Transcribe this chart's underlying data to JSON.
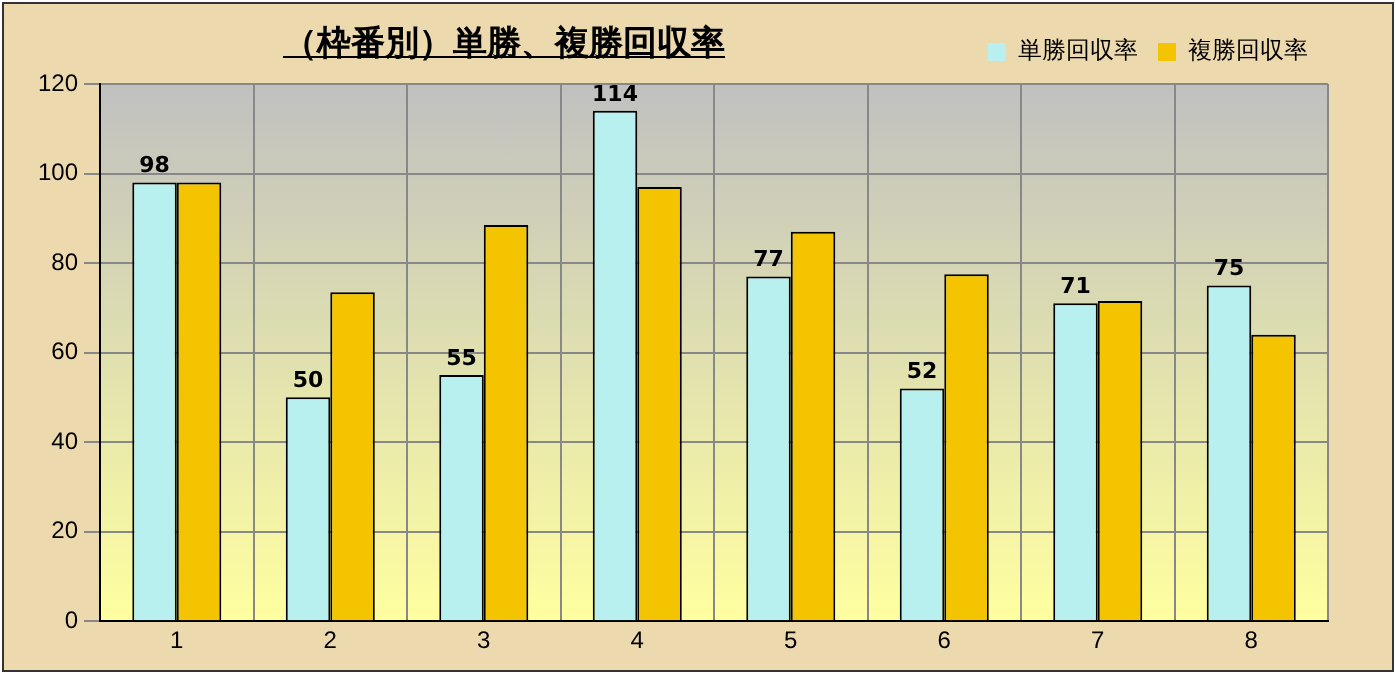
{
  "chart_data": {
    "type": "bar",
    "title": "（枠番別）単勝、複勝回収率",
    "categories": [
      "1",
      "2",
      "3",
      "4",
      "5",
      "6",
      "7",
      "8"
    ],
    "series": [
      {
        "name": "単勝回収率",
        "color": "#b8f0f0",
        "values": [
          98,
          50,
          55,
          114,
          77,
          52,
          71,
          75
        ],
        "value_labels": [
          "98",
          "50",
          "55",
          "114",
          "77",
          "52",
          "71",
          "75"
        ]
      },
      {
        "name": "複勝回収率",
        "color": "#f5c400",
        "values": [
          98,
          73.5,
          88.5,
          97,
          87,
          77.5,
          71.5,
          64
        ]
      }
    ],
    "ylim": [
      0,
      120
    ],
    "yticks": [
      0,
      20,
      40,
      60,
      80,
      100,
      120
    ],
    "grid": true,
    "legend": "top right"
  }
}
